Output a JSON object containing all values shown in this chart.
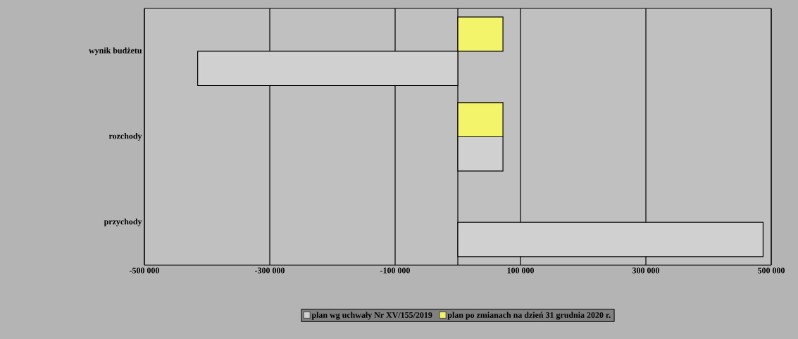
{
  "chart_data": {
    "type": "bar",
    "orientation": "horizontal",
    "categories": [
      "wynik budżetu",
      "rozchody",
      "przychody"
    ],
    "series": [
      {
        "name": "plan wg uchwały Nr XV/155/2019",
        "color": "#d0d0d0",
        "values": [
          -415000,
          72000,
          487000
        ]
      },
      {
        "name": "plan po zmianach na dzień 31 grudnia 2020 r.",
        "color": "#f4f46a",
        "values": [
          72000,
          72000,
          null
        ]
      }
    ],
    "xlim": [
      -500000,
      500000
    ],
    "xticks": [
      {
        "value": -500000,
        "label": "-500 000"
      },
      {
        "value": -300000,
        "label": "-300 000"
      },
      {
        "value": -100000,
        "label": "-100 000"
      },
      {
        "value": 0,
        "label": null
      },
      {
        "value": 100000,
        "label": "100 000"
      },
      {
        "value": 300000,
        "label": "300 000"
      },
      {
        "value": 500000,
        "label": "500 000"
      }
    ],
    "grid": "x",
    "legend": "bottom"
  }
}
